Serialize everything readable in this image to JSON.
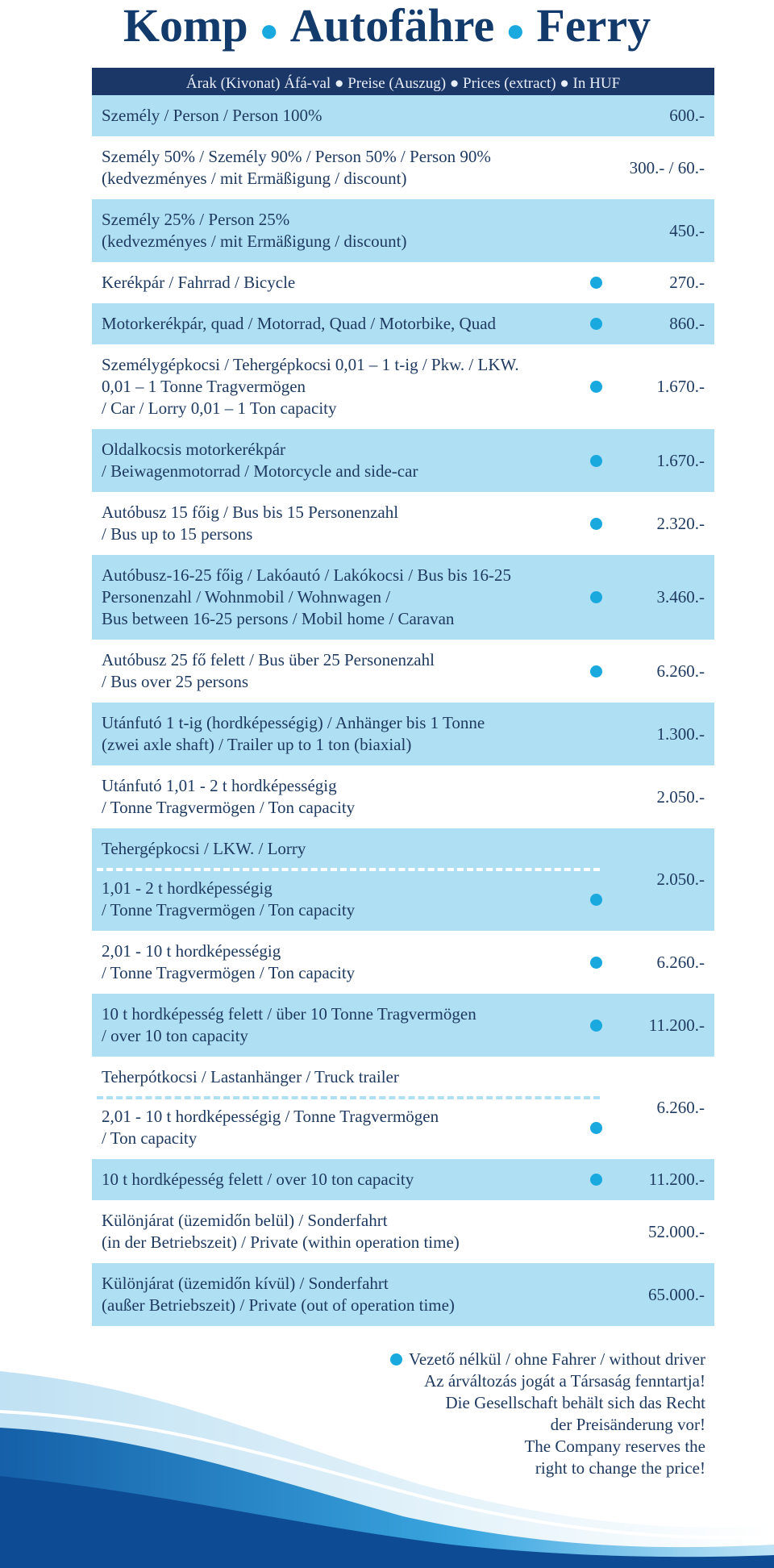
{
  "title": [
    "Komp",
    "Autofähre",
    "Ferry"
  ],
  "header": "Árak (Kivonat) Áfá-val ● Preise (Auszug) ● Prices (extract) ● In HUF",
  "rows": [
    {
      "lines": [
        "Személy / Person / Person 100%"
      ],
      "price": "600.-",
      "dot": false
    },
    {
      "lines": [
        "Személy 50% / Személy 90% / Person 50% / Person 90%",
        "(kedvezményes / mit Ermäßigung / discount)"
      ],
      "price": "300.- / 60.-",
      "dot": false
    },
    {
      "lines": [
        "Személy 25% / Person 25%",
        "(kedvezményes / mit Ermäßigung / discount)"
      ],
      "price": "450.-",
      "dot": false
    },
    {
      "lines": [
        "Kerékpár / Fahrrad / Bicycle"
      ],
      "price": "270.-",
      "dot": true
    },
    {
      "lines": [
        "Motorkerékpár, quad / Motorrad, Quad / Motorbike, Quad"
      ],
      "price": "860.-",
      "dot": true
    },
    {
      "lines": [
        "Személygépkocsi / Tehergépkocsi 0,01 – 1 t-ig  / Pkw. / LKW.",
        "0,01 – 1 Tonne Tragvermögen",
        "/ Car / Lorry 0,01 – 1 Ton capacity"
      ],
      "price": "1.670.-",
      "dot": true
    },
    {
      "lines": [
        "Oldalkocsis motorkerékpár",
        "/ Beiwagenmotorrad / Motorcycle and side-car"
      ],
      "price": "1.670.-",
      "dot": true
    },
    {
      "lines": [
        "Autóbusz 15 főig / Bus bis 15 Personenzahl",
        "/ Bus up to 15 persons"
      ],
      "price": "2.320.-",
      "dot": true
    },
    {
      "lines": [
        "Autóbusz-16-25 főig / Lakóautó / Lakókocsi / Bus bis 16-25",
        "Personenzahl / Wohnmobil / Wohnwagen /",
        "Bus between 16-25 persons / Mobil home / Caravan"
      ],
      "price": "3.460.-",
      "dot": true
    },
    {
      "lines": [
        "Autóbusz 25 fő felett / Bus über 25 Personenzahl",
        "/ Bus over 25 persons"
      ],
      "price": "6.260.-",
      "dot": true
    },
    {
      "lines": [
        "Utánfutó 1 t-ig (hordképességig) / Anhänger bis 1 Tonne",
        "(zwei axle shaft) / Trailer up to 1 ton (biaxial)"
      ],
      "price": "1.300.-",
      "dot": false
    },
    {
      "lines": [
        "Utánfutó 1,01 - 2 t hordképességig",
        "/ Tonne Tragvermögen / Ton capacity"
      ],
      "price": "2.050.-",
      "dot": false
    },
    {
      "heading": "Tehergépkocsi / LKW. / Lorry",
      "lines": [
        "1,01 - 2 t hordképességig",
        "/ Tonne Tragvermögen / Ton capacity"
      ],
      "price": "2.050.-",
      "dot": true
    },
    {
      "lines": [
        "2,01 - 10 t hordképességig",
        "/ Tonne Tragvermögen / Ton capacity"
      ],
      "price": "6.260.-",
      "dot": true
    },
    {
      "lines": [
        "10 t hordképesség felett / über 10 Tonne Tragvermögen",
        "/ over 10 ton capacity"
      ],
      "price": "11.200.-",
      "dot": true
    },
    {
      "heading": "Teherpótkocsi / Lastanhänger / Truck trailer",
      "lines": [
        "2,01 - 10 t hordképességig / Tonne Tragvermögen",
        "/ Ton capacity"
      ],
      "price": "6.260.-",
      "dot": true
    },
    {
      "lines": [
        "10 t hordképesség felett / over 10 ton capacity"
      ],
      "price": "11.200.-",
      "dot": true
    },
    {
      "lines": [
        "Különjárat (üzemidőn belül) / Sonderfahrt",
        "(in der Betriebszeit) / Private (within operation time)"
      ],
      "price": "52.000.-",
      "dot": false
    },
    {
      "lines": [
        "Különjárat (üzemidőn kívül) / Sonderfahrt",
        "(außer Betriebszeit) / Private (out of operation time)"
      ],
      "price": "65.000.-",
      "dot": false
    }
  ],
  "footer": [
    "Vezető nélkül / ohne Fahrer / without driver",
    "Az árváltozás jogát a Társaság fenntartja!",
    "Die Gesellschaft behält sich das Recht",
    "der Preisänderung vor!",
    "The Company reserves the",
    "right to change the price!"
  ]
}
